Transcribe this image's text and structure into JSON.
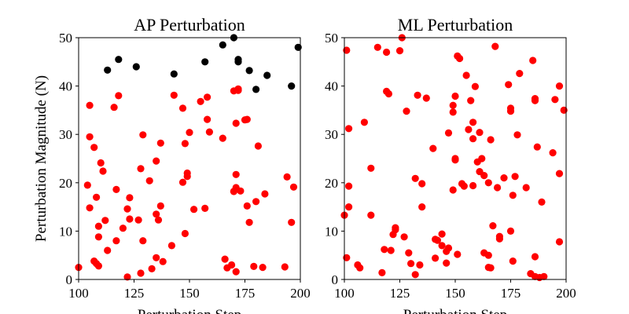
{
  "chart_data": [
    {
      "type": "scatter",
      "title": "AP Perturbation",
      "xlabel": "Perturbation Step",
      "ylabel": "Perturbation Magnitude (N)",
      "xlim": [
        100,
        200
      ],
      "ylim": [
        0,
        50
      ],
      "xticks": [
        "100",
        "125",
        "150",
        "175",
        "200"
      ],
      "yticks": [
        "0",
        "10",
        "20",
        "30",
        "40",
        "50"
      ],
      "grid": false,
      "series": [
        {
          "color": "#ff0000",
          "points": [
            [
              100,
              2.5
            ],
            [
              104,
              19.5
            ],
            [
              105,
              36
            ],
            [
              105,
              29.5
            ],
            [
              105,
              14.8
            ],
            [
              107,
              27.3
            ],
            [
              107,
              3.8
            ],
            [
              108,
              3.3
            ],
            [
              108,
              17
            ],
            [
              109,
              2.8
            ],
            [
              109,
              11
            ],
            [
              109,
              8.8
            ],
            [
              110,
              24.1
            ],
            [
              111,
              22.4
            ],
            [
              112,
              12.2
            ],
            [
              113,
              6
            ],
            [
              116,
              35.6
            ],
            [
              117,
              8
            ],
            [
              117,
              18.6
            ],
            [
              118,
              38
            ],
            [
              120,
              10.6
            ],
            [
              122,
              0.5
            ],
            [
              122,
              14.6
            ],
            [
              123,
              16.9
            ],
            [
              123,
              12.5
            ],
            [
              127,
              12.3
            ],
            [
              128,
              22.9
            ],
            [
              128,
              1.3
            ],
            [
              129,
              8
            ],
            [
              129,
              29.9
            ],
            [
              132,
              20.4
            ],
            [
              133,
              2.2
            ],
            [
              135,
              13.5
            ],
            [
              135,
              4.5
            ],
            [
              135,
              24.5
            ],
            [
              136,
              12.3
            ],
            [
              137,
              28.2
            ],
            [
              137,
              15.2
            ],
            [
              138,
              3.7
            ],
            [
              142,
              7
            ],
            [
              143,
              38.1
            ],
            [
              147,
              20.1
            ],
            [
              147,
              35.4
            ],
            [
              148,
              9.5
            ],
            [
              148,
              28.1
            ],
            [
              149,
              22
            ],
            [
              149,
              21.3
            ],
            [
              150,
              30.4
            ],
            [
              152,
              14.5
            ],
            [
              155,
              36.8
            ],
            [
              157,
              14.7
            ],
            [
              158,
              33.1
            ],
            [
              158,
              37.7
            ],
            [
              159,
              30.5
            ],
            [
              165,
              29.2
            ],
            [
              166,
              4.2
            ],
            [
              167,
              2.4
            ],
            [
              169,
              3
            ],
            [
              170,
              18.2
            ],
            [
              170,
              18.2
            ],
            [
              170,
              39
            ],
            [
              171,
              19
            ],
            [
              171,
              21.7
            ],
            [
              171,
              32.3
            ],
            [
              171,
              1.6
            ],
            [
              172,
              39.4
            ],
            [
              172,
              39.1
            ],
            [
              173,
              18.3
            ],
            [
              175,
              33
            ],
            [
              176,
              15.2
            ],
            [
              176,
              33.1
            ],
            [
              177,
              11.8
            ],
            [
              179,
              2.7
            ],
            [
              180,
              16.1
            ],
            [
              181,
              27.6
            ],
            [
              183,
              2.5
            ],
            [
              184,
              17.7
            ],
            [
              193,
              2.6
            ],
            [
              194,
              21.2
            ],
            [
              196,
              11.8
            ],
            [
              197,
              19.1
            ]
          ]
        },
        {
          "color": "#000000",
          "points": [
            [
              113,
              43.3
            ],
            [
              118,
              45.5
            ],
            [
              126,
              44
            ],
            [
              143,
              42.5
            ],
            [
              157,
              45
            ],
            [
              165,
              48.5
            ],
            [
              170,
              50
            ],
            [
              172,
              45.5
            ],
            [
              172,
              45
            ],
            [
              177,
              43.2
            ],
            [
              180,
              39.3
            ],
            [
              185,
              42.2
            ],
            [
              196,
              40
            ],
            [
              199,
              48
            ]
          ]
        }
      ]
    },
    {
      "type": "scatter",
      "title": "ML Perturbation",
      "xlabel": "Perturbation Step",
      "ylabel": "",
      "xlim": [
        100,
        200
      ],
      "ylim": [
        0,
        50
      ],
      "xticks": [
        "100",
        "125",
        "150",
        "175",
        "200"
      ],
      "yticks": [
        "0",
        "10",
        "20",
        "30",
        "40",
        "50"
      ],
      "grid": false,
      "series": [
        {
          "color": "#ff0000",
          "points": [
            [
              100,
              13.3
            ],
            [
              101,
              47.4
            ],
            [
              101,
              4.5
            ],
            [
              102,
              19.3
            ],
            [
              102,
              15
            ],
            [
              102,
              31.2
            ],
            [
              106,
              3
            ],
            [
              107,
              2.4
            ],
            [
              109,
              32.5
            ],
            [
              112,
              23
            ],
            [
              112,
              13.3
            ],
            [
              115,
              48
            ],
            [
              117,
              1.4
            ],
            [
              118,
              6.2
            ],
            [
              119,
              47
            ],
            [
              119,
              38.9
            ],
            [
              120,
              38.4
            ],
            [
              121,
              6
            ],
            [
              122,
              9.3
            ],
            [
              123,
              10.7
            ],
            [
              123,
              10.3
            ],
            [
              125,
              47.3
            ],
            [
              126,
              50
            ],
            [
              127,
              8.8
            ],
            [
              128,
              34.8
            ],
            [
              129,
              5.5
            ],
            [
              130,
              3.3
            ],
            [
              132,
              1
            ],
            [
              132,
              20.9
            ],
            [
              133,
              38.1
            ],
            [
              134,
              3
            ],
            [
              135,
              15
            ],
            [
              135,
              19.8
            ],
            [
              137,
              37.5
            ],
            [
              140,
              27.1
            ],
            [
              141,
              8.3
            ],
            [
              141,
              4.4
            ],
            [
              142,
              8.1
            ],
            [
              144,
              9.4
            ],
            [
              144,
              7
            ],
            [
              146,
              3.4
            ],
            [
              146,
              5.8
            ],
            [
              147,
              6.5
            ],
            [
              147,
              30.3
            ],
            [
              149,
              18.5
            ],
            [
              149,
              36
            ],
            [
              149,
              34.6
            ],
            [
              150,
              25
            ],
            [
              150,
              24.7
            ],
            [
              150,
              37.9
            ],
            [
              151,
              5.2
            ],
            [
              151,
              46.2
            ],
            [
              152,
              45.7
            ],
            [
              153,
              19.8
            ],
            [
              154,
              19.3
            ],
            [
              155,
              42.2
            ],
            [
              156,
              31
            ],
            [
              157,
              37
            ],
            [
              158,
              19.4
            ],
            [
              158,
              29.1
            ],
            [
              158,
              32.5
            ],
            [
              159,
              39.9
            ],
            [
              160,
              24.3
            ],
            [
              161,
              22.3
            ],
            [
              161,
              30.4
            ],
            [
              162,
              25
            ],
            [
              163,
              21.5
            ],
            [
              163,
              5.5
            ],
            [
              165,
              20
            ],
            [
              165,
              2.5
            ],
            [
              165,
              5
            ],
            [
              166,
              2.4
            ],
            [
              166,
              28.9
            ],
            [
              167,
              11.1
            ],
            [
              168,
              48.2
            ],
            [
              169,
              19
            ],
            [
              170,
              8.9
            ],
            [
              170,
              8.4
            ],
            [
              172,
              21
            ],
            [
              174,
              40.3
            ],
            [
              175,
              34.8
            ],
            [
              175,
              35.4
            ],
            [
              175,
              10
            ],
            [
              176,
              3.8
            ],
            [
              176,
              17.4
            ],
            [
              177,
              21.3
            ],
            [
              178,
              29.9
            ],
            [
              179,
              42.6
            ],
            [
              182,
              19
            ],
            [
              184,
              1.2
            ],
            [
              185,
              45.3
            ],
            [
              186,
              4.7
            ],
            [
              186,
              0.6
            ],
            [
              186,
              37.4
            ],
            [
              186,
              37
            ],
            [
              187,
              27.4
            ],
            [
              188,
              0.4
            ],
            [
              189,
              16
            ],
            [
              190,
              0.6
            ],
            [
              194,
              26.2
            ],
            [
              195,
              37.2
            ],
            [
              197,
              7.8
            ],
            [
              197,
              40
            ],
            [
              197,
              21.9
            ],
            [
              199,
              35
            ]
          ]
        }
      ]
    }
  ]
}
